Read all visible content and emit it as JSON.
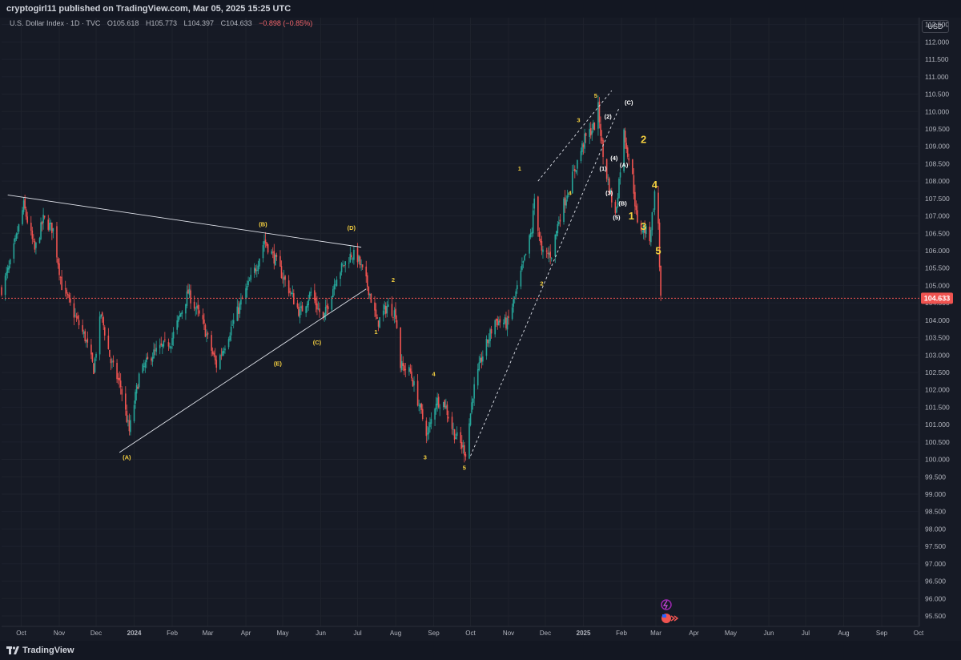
{
  "header": {
    "published": "cryptogirl11 published on TradingView.com, Mar 05, 2025 15:25 UTC"
  },
  "legend": {
    "symbol": "U.S. Dollar Index · 1D · TVC",
    "open": "O105.618",
    "high": "H105.773",
    "low": "L104.397",
    "close": "C104.633",
    "change": "−0.898 (−0.85%)"
  },
  "currency_label": "USD",
  "last_price_label": "104.633",
  "footer": {
    "brand": "TradingView"
  },
  "colors": {
    "up": "#26a69a",
    "down": "#ef5350",
    "wave_label": "#f5d040",
    "background": "#161a25"
  },
  "chart_data": {
    "type": "candlestick",
    "title": "U.S. Dollar Index · 1D · TVC",
    "xlabel": "",
    "ylabel": "",
    "ylim": [
      95.2,
      112.7
    ],
    "y_ticks": [
      "112.500",
      "112.000",
      "111.500",
      "111.000",
      "110.500",
      "110.000",
      "109.500",
      "109.000",
      "108.500",
      "108.000",
      "107.500",
      "107.000",
      "106.500",
      "106.000",
      "105.500",
      "105.000",
      "104.500",
      "104.000",
      "103.500",
      "103.000",
      "102.500",
      "102.000",
      "101.500",
      "101.000",
      "100.500",
      "100.000",
      "99.500",
      "99.000",
      "98.500",
      "98.000",
      "97.500",
      "97.000",
      "96.500",
      "96.000",
      "95.500"
    ],
    "x_ticks": [
      {
        "label": "Oct",
        "date": "2023-10-01"
      },
      {
        "label": "Nov",
        "date": "2023-11-01"
      },
      {
        "label": "Dec",
        "date": "2023-12-01"
      },
      {
        "label": "2024",
        "date": "2024-01-01"
      },
      {
        "label": "Feb",
        "date": "2024-02-01"
      },
      {
        "label": "Mar",
        "date": "2024-03-01"
      },
      {
        "label": "Apr",
        "date": "2024-04-01"
      },
      {
        "label": "May",
        "date": "2024-05-01"
      },
      {
        "label": "Jun",
        "date": "2024-06-01"
      },
      {
        "label": "Jul",
        "date": "2024-07-01"
      },
      {
        "label": "Aug",
        "date": "2024-08-01"
      },
      {
        "label": "Sep",
        "date": "2024-09-01"
      },
      {
        "label": "Oct",
        "date": "2024-10-01"
      },
      {
        "label": "Nov",
        "date": "2024-11-01"
      },
      {
        "label": "Dec",
        "date": "2024-12-01"
      },
      {
        "label": "2025",
        "date": "2025-01-01"
      },
      {
        "label": "Feb",
        "date": "2025-02-01"
      },
      {
        "label": "Mar",
        "date": "2025-03-01"
      },
      {
        "label": "Apr",
        "date": "2025-04-01"
      },
      {
        "label": "May",
        "date": "2025-05-01"
      },
      {
        "label": "Jun",
        "date": "2025-06-01"
      },
      {
        "label": "Jul",
        "date": "2025-07-01"
      },
      {
        "label": "Aug",
        "date": "2025-08-01"
      },
      {
        "label": "Sep",
        "date": "2025-09-01"
      },
      {
        "label": "Oct",
        "date": "2025-10-01"
      }
    ],
    "last_close": 104.633,
    "price_path": [
      [
        "2023-09-15",
        104.9
      ],
      [
        "2023-09-22",
        105.6
      ],
      [
        "2023-10-03",
        107.3
      ],
      [
        "2023-10-12",
        106.0
      ],
      [
        "2023-10-19",
        106.9
      ],
      [
        "2023-10-27",
        106.6
      ],
      [
        "2023-11-03",
        105.0
      ],
      [
        "2023-11-14",
        104.1
      ],
      [
        "2023-11-22",
        103.5
      ],
      [
        "2023-11-29",
        102.6
      ],
      [
        "2023-12-05",
        104.2
      ],
      [
        "2023-12-13",
        102.8
      ],
      [
        "2023-12-21",
        102.1
      ],
      [
        "2023-12-28",
        100.8
      ],
      [
        "2024-01-05",
        102.4
      ],
      [
        "2024-01-15",
        103.0
      ],
      [
        "2024-01-31",
        103.4
      ],
      [
        "2024-02-14",
        104.8
      ],
      [
        "2024-02-26",
        103.9
      ],
      [
        "2024-03-08",
        102.7
      ],
      [
        "2024-03-18",
        103.6
      ],
      [
        "2024-03-28",
        104.5
      ],
      [
        "2024-04-10",
        105.6
      ],
      [
        "2024-04-16",
        106.3
      ],
      [
        "2024-04-24",
        105.8
      ],
      [
        "2024-05-02",
        105.2
      ],
      [
        "2024-05-15",
        104.2
      ],
      [
        "2024-05-24",
        104.8
      ],
      [
        "2024-06-03",
        104.0
      ],
      [
        "2024-06-14",
        105.3
      ],
      [
        "2024-06-26",
        105.9
      ],
      [
        "2024-07-01",
        105.8
      ],
      [
        "2024-07-10",
        104.9
      ],
      [
        "2024-07-17",
        103.9
      ],
      [
        "2024-07-25",
        104.4
      ],
      [
        "2024-08-01",
        104.2
      ],
      [
        "2024-08-05",
        102.7
      ],
      [
        "2024-08-13",
        102.5
      ],
      [
        "2024-08-22",
        101.3
      ],
      [
        "2024-08-27",
        100.7
      ],
      [
        "2024-09-03",
        101.7
      ],
      [
        "2024-09-10",
        101.6
      ],
      [
        "2024-09-17",
        100.8
      ],
      [
        "2024-09-27",
        100.2
      ],
      [
        "2024-10-03",
        101.9
      ],
      [
        "2024-10-10",
        102.9
      ],
      [
        "2024-10-21",
        104.0
      ],
      [
        "2024-10-31",
        103.9
      ],
      [
        "2024-11-08",
        104.9
      ],
      [
        "2024-11-20",
        106.6
      ],
      [
        "2024-11-22",
        107.5
      ],
      [
        "2024-11-28",
        105.9
      ],
      [
        "2024-12-06",
        105.9
      ],
      [
        "2024-12-12",
        106.9
      ],
      [
        "2024-12-20",
        107.8
      ],
      [
        "2025-01-02",
        109.2
      ],
      [
        "2025-01-10",
        109.6
      ],
      [
        "2025-01-13",
        110.1
      ],
      [
        "2025-01-17",
        108.7
      ],
      [
        "2025-01-22",
        107.8
      ],
      [
        "2025-01-27",
        107.0
      ],
      [
        "2025-02-03",
        109.4
      ],
      [
        "2025-02-10",
        108.1
      ],
      [
        "2025-02-14",
        106.7
      ],
      [
        "2025-02-20",
        106.6
      ],
      [
        "2025-02-24",
        106.4
      ],
      [
        "2025-02-28",
        107.6
      ],
      [
        "2025-03-03",
        106.8
      ],
      [
        "2025-03-04",
        105.6
      ],
      [
        "2025-03-05",
        104.633
      ]
    ],
    "trendlines": [
      {
        "style": "solid",
        "from": [
          "2023-09-20",
          107.6
        ],
        "to": [
          "2024-07-04",
          106.1
        ]
      },
      {
        "style": "solid",
        "from": [
          "2023-12-20",
          100.2
        ],
        "to": [
          "2024-07-08",
          104.9
        ]
      },
      {
        "style": "dashed",
        "from": [
          "2024-10-01",
          100.1
        ],
        "to": [
          "2025-01-30",
          110.1
        ]
      },
      {
        "style": "dashed",
        "from": [
          "2024-11-25",
          108.0
        ],
        "to": [
          "2025-01-24",
          110.6
        ]
      }
    ],
    "wave_labels": [
      {
        "text": "(A)",
        "date": "2023-12-26",
        "price": 100.0
      },
      {
        "text": "(B)",
        "date": "2024-04-15",
        "price": 106.7
      },
      {
        "text": "(C)",
        "date": "2024-05-29",
        "price": 103.3
      },
      {
        "text": "(D)",
        "date": "2024-06-26",
        "price": 106.6
      },
      {
        "text": "(E)",
        "date": "2024-04-27",
        "price": 102.7
      },
      {
        "text": "1",
        "date": "2024-07-16",
        "price": 103.6
      },
      {
        "text": "2",
        "date": "2024-07-30",
        "price": 105.1
      },
      {
        "text": "3",
        "date": "2024-08-25",
        "price": 100.0
      },
      {
        "text": "4",
        "date": "2024-09-01",
        "price": 102.4
      },
      {
        "text": "5",
        "date": "2024-09-26",
        "price": 99.7
      },
      {
        "text": "1",
        "date": "2024-11-10",
        "price": 108.3
      },
      {
        "text": "2",
        "date": "2024-11-28",
        "price": 105.0
      },
      {
        "text": "3",
        "date": "2024-12-28",
        "price": 109.7
      },
      {
        "text": "4",
        "date": "2024-12-21",
        "price": 107.6
      },
      {
        "text": "5",
        "date": "2025-01-11",
        "price": 110.4
      },
      {
        "text": "(1)",
        "date": "2025-01-17",
        "price": 108.3
      },
      {
        "text": "(2)",
        "date": "2025-01-21",
        "price": 109.8
      },
      {
        "text": "(3)",
        "date": "2025-01-22",
        "price": 107.6
      },
      {
        "text": "(4)",
        "date": "2025-01-26",
        "price": 108.6
      },
      {
        "text": "(5)",
        "date": "2025-01-28",
        "price": 106.9
      },
      {
        "text": "(A)",
        "date": "2025-02-03",
        "price": 108.4
      },
      {
        "text": "(B)",
        "date": "2025-02-02",
        "price": 107.3
      },
      {
        "text": "(C)",
        "date": "2025-02-07",
        "price": 110.2
      },
      {
        "text": "1",
        "date": "2025-02-09",
        "price": 106.9
      },
      {
        "text": "2",
        "date": "2025-02-19",
        "price": 109.1
      },
      {
        "text": "3",
        "date": "2025-02-19",
        "price": 106.6
      },
      {
        "text": "4",
        "date": "2025-02-28",
        "price": 107.8
      },
      {
        "text": "5",
        "date": "2025-03-03",
        "price": 105.9
      }
    ]
  }
}
